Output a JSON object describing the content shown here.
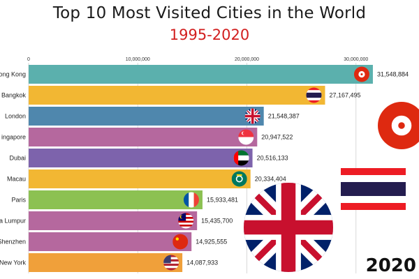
{
  "title": "Top 10 Most Visited Cities in the World",
  "subtitle": "1995-2020",
  "year": "2020",
  "colors": {
    "title": "#1a1a1a",
    "subtitle": "#d21f1f",
    "grid": "#d9d9d9"
  },
  "chart_data": {
    "type": "bar",
    "orientation": "horizontal",
    "title": "Top 10 Most Visited Cities in the World",
    "subtitle": "1995-2020",
    "categories": [
      "Hong Kong",
      "Bangkok",
      "London",
      "Singapore",
      "Dubai",
      "Macau",
      "Paris",
      "Kuala Lumpur",
      "Shenzhen",
      "New York"
    ],
    "category_labels": [
      "ong Kong",
      "Bangkok",
      "London",
      "ingapore",
      "Dubai",
      "Macau",
      "Paris",
      "a Lumpur",
      "Shenzhen",
      "New York"
    ],
    "values": [
      31548884,
      27167495,
      21548387,
      20947522,
      20516133,
      20334404,
      15933481,
      15435700,
      14925555,
      14087933
    ],
    "value_labels": [
      "31,548,884",
      "27,167,495",
      "21,548,387",
      "20,947,522",
      "20,516,133",
      "20,334,404",
      "15,933,481",
      "15,435,700",
      "14,925,555",
      "14,087,933"
    ],
    "bar_colors": [
      "#5bb0ad",
      "#f2b733",
      "#4f87ad",
      "#b5689e",
      "#7d63ac",
      "#f2b733",
      "#8cc152",
      "#b5689e",
      "#b5689e",
      "#f0a03a"
    ],
    "flags": [
      "hong-kong",
      "thailand",
      "united-kingdom",
      "singapore",
      "uae",
      "macau",
      "france",
      "malaysia",
      "china",
      "usa"
    ],
    "xticks": [
      0,
      10000000,
      20000000,
      30000000
    ],
    "xtick_labels": [
      "0",
      "10,000,000",
      "20,000,000",
      "30,000,000"
    ],
    "xlim": [
      0,
      32000000
    ],
    "grid": true,
    "year": "2020"
  }
}
